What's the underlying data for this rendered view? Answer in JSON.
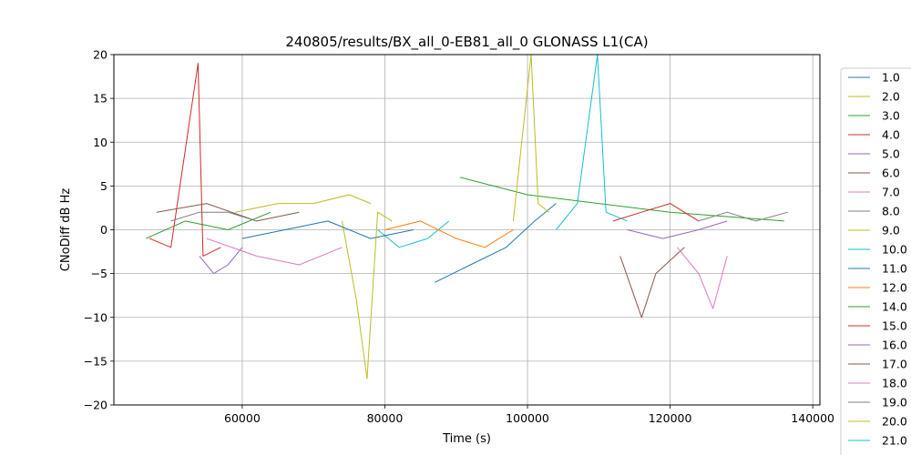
{
  "chart_data": {
    "type": "line",
    "title": "240805/results/BX_all_0-EB81_all_0 GLONASS L1(CA)",
    "xlabel": "Time (s)",
    "ylabel": "CNoDiff dB Hz",
    "xlim": [
      42000,
      141000
    ],
    "ylim": [
      -20,
      20
    ],
    "xticks": [
      60000,
      80000,
      100000,
      120000,
      140000
    ],
    "xtick_labels": [
      "60000",
      "80000",
      "100000",
      "120000",
      "140000"
    ],
    "yticks": [
      -20,
      -15,
      -10,
      -5,
      0,
      5,
      10,
      15,
      20
    ],
    "ytick_labels": [
      "−20",
      "−15",
      "−10",
      "−5",
      "0",
      "5",
      "10",
      "15",
      "20"
    ],
    "grid": true,
    "legend_position": "right-outside",
    "series": [
      {
        "name": "1.0",
        "color": "#1f77b4",
        "x": [
          87000,
          92000,
          97000,
          101000,
          104000
        ],
        "y": [
          -6,
          -4,
          -2,
          1,
          3
        ]
      },
      {
        "name": "2.0",
        "color": "#bcbd22",
        "x": [
          59000,
          65000,
          70000,
          75000,
          78000
        ],
        "y": [
          2,
          3,
          3,
          4,
          3
        ]
      },
      {
        "name": "3.0",
        "color": "#2ca02c",
        "x": [
          46500,
          52000,
          58000,
          64000
        ],
        "y": [
          -1,
          1,
          0,
          2
        ]
      },
      {
        "name": "4.0",
        "color": "#d62728",
        "x": [
          47000,
          50000,
          53800,
          54500,
          57000
        ],
        "y": [
          -1,
          -2,
          19,
          -3,
          -2
        ]
      },
      {
        "name": "5.0",
        "color": "#9467bd",
        "x": [
          54000,
          56000,
          58000,
          60000
        ],
        "y": [
          -3,
          -5,
          -4,
          -2
        ]
      },
      {
        "name": "6.0",
        "color": "#8c564b",
        "x": [
          48000,
          55000,
          62000,
          68000
        ],
        "y": [
          2,
          3,
          1,
          2
        ]
      },
      {
        "name": "7.0",
        "color": "#e377c2",
        "x": [
          55000,
          62000,
          68000,
          74000
        ],
        "y": [
          -1,
          -3,
          -4,
          -2
        ]
      },
      {
        "name": "8.0",
        "color": "#7f7f7f",
        "x": [
          50000,
          54000,
          58000,
          62000
        ],
        "y": [
          1,
          2,
          2,
          1
        ]
      },
      {
        "name": "9.0",
        "color": "#bcbd22",
        "x": [
          74000,
          76000,
          77500,
          79000,
          81000
        ],
        "y": [
          1,
          -8,
          -17,
          2,
          1
        ]
      },
      {
        "name": "10.0",
        "color": "#17becf",
        "x": [
          79000,
          82000,
          86000,
          89000
        ],
        "y": [
          0,
          -2,
          -1,
          1
        ]
      },
      {
        "name": "11.0",
        "color": "#1f77b4",
        "x": [
          60000,
          66000,
          72000,
          78000,
          84000
        ],
        "y": [
          -1,
          0,
          1,
          -1,
          0
        ]
      },
      {
        "name": "12.0",
        "color": "#ff7f0e",
        "x": [
          80000,
          85000,
          90000,
          94000,
          98000
        ],
        "y": [
          0,
          1,
          -1,
          -2,
          0
        ]
      },
      {
        "name": "14.0",
        "color": "#2ca02c",
        "x": [
          90500,
          100000,
          110000,
          120000,
          136000
        ],
        "y": [
          6,
          4,
          3,
          2,
          1
        ]
      },
      {
        "name": "15.0",
        "color": "#d62728",
        "x": [
          112000,
          116000,
          120000,
          124000
        ],
        "y": [
          1,
          2,
          3,
          1
        ]
      },
      {
        "name": "16.0",
        "color": "#9467bd",
        "x": [
          114000,
          119000,
          124000,
          128000
        ],
        "y": [
          0,
          -1,
          0,
          1
        ]
      },
      {
        "name": "17.0",
        "color": "#8c564b",
        "x": [
          113000,
          116000,
          118000,
          122000
        ],
        "y": [
          -3,
          -10,
          -5,
          -2
        ]
      },
      {
        "name": "18.0",
        "color": "#e377c2",
        "x": [
          121000,
          124000,
          126000,
          128000
        ],
        "y": [
          -2,
          -5,
          -9,
          -3
        ]
      },
      {
        "name": "19.0",
        "color": "#7f7f7f",
        "x": [
          124000,
          128000,
          132000,
          136500
        ],
        "y": [
          1,
          2,
          1,
          2
        ]
      },
      {
        "name": "20.0",
        "color": "#bcbd22",
        "x": [
          98000,
          100500,
          101500,
          103000
        ],
        "y": [
          1,
          20,
          3,
          2
        ]
      },
      {
        "name": "21.0",
        "color": "#17becf",
        "x": [
          104000,
          107000,
          109800,
          111000,
          114000
        ],
        "y": [
          0,
          3,
          20,
          2,
          1
        ]
      }
    ]
  }
}
